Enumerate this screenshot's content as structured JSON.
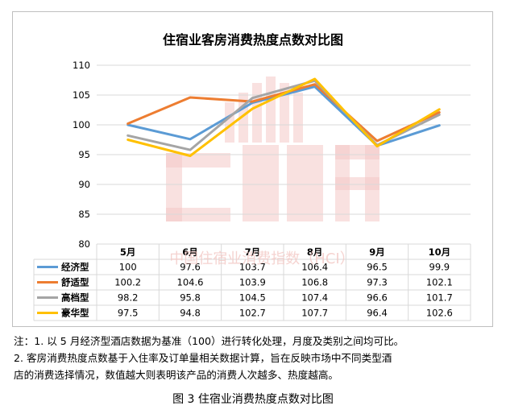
{
  "chart_data": {
    "type": "line",
    "title": "住宿业客房消费热度点数对比图",
    "categories": [
      "5月",
      "6月",
      "7月",
      "8月",
      "9月",
      "10月"
    ],
    "ylim": [
      80,
      110
    ],
    "yticks": [
      80,
      85,
      90,
      95,
      100,
      105,
      110
    ],
    "grid": true,
    "legend_placement": "data-table",
    "series": [
      {
        "name": "经济型",
        "color": "#5b9bd5",
        "values": [
          100,
          97.6,
          103.7,
          106.4,
          96.5,
          99.9
        ],
        "labels": [
          "100",
          "97.6",
          "103.7",
          "106.4",
          "96.5",
          "99.9"
        ]
      },
      {
        "name": "舒适型",
        "color": "#ed7d31",
        "values": [
          100.2,
          104.6,
          103.9,
          106.8,
          97.3,
          102.1
        ],
        "labels": [
          "100.2",
          "104.6",
          "103.9",
          "106.8",
          "97.3",
          "102.1"
        ]
      },
      {
        "name": "高档型",
        "color": "#a5a5a5",
        "values": [
          98.2,
          95.8,
          104.5,
          107.4,
          96.6,
          101.7
        ],
        "labels": [
          "98.2",
          "95.8",
          "104.5",
          "107.4",
          "96.6",
          "101.7"
        ]
      },
      {
        "name": "豪华型",
        "color": "#ffc000",
        "values": [
          97.5,
          94.8,
          102.7,
          107.7,
          96.4,
          102.6
        ],
        "labels": [
          "97.5",
          "94.8",
          "102.7",
          "107.7",
          "96.4",
          "102.6"
        ]
      }
    ]
  },
  "watermark": {
    "text": "中国住宿业消费指数（HCI）",
    "color": "#f4c9c6"
  },
  "notes": {
    "line1": "注：1. 以 5 月经济型酒店数据为基准（100）进行转化处理，月度及类别之间均可比。",
    "line2": "2. 客房消费热度点数基于入住率及订单量相关数据计算，旨在反映市场中不同类型酒",
    "line3": "店的消费选择情况，数值越大则表明该产品的消费人次越多、热度越高。"
  },
  "caption": "图 3  住宿业消费热度点数对比图"
}
